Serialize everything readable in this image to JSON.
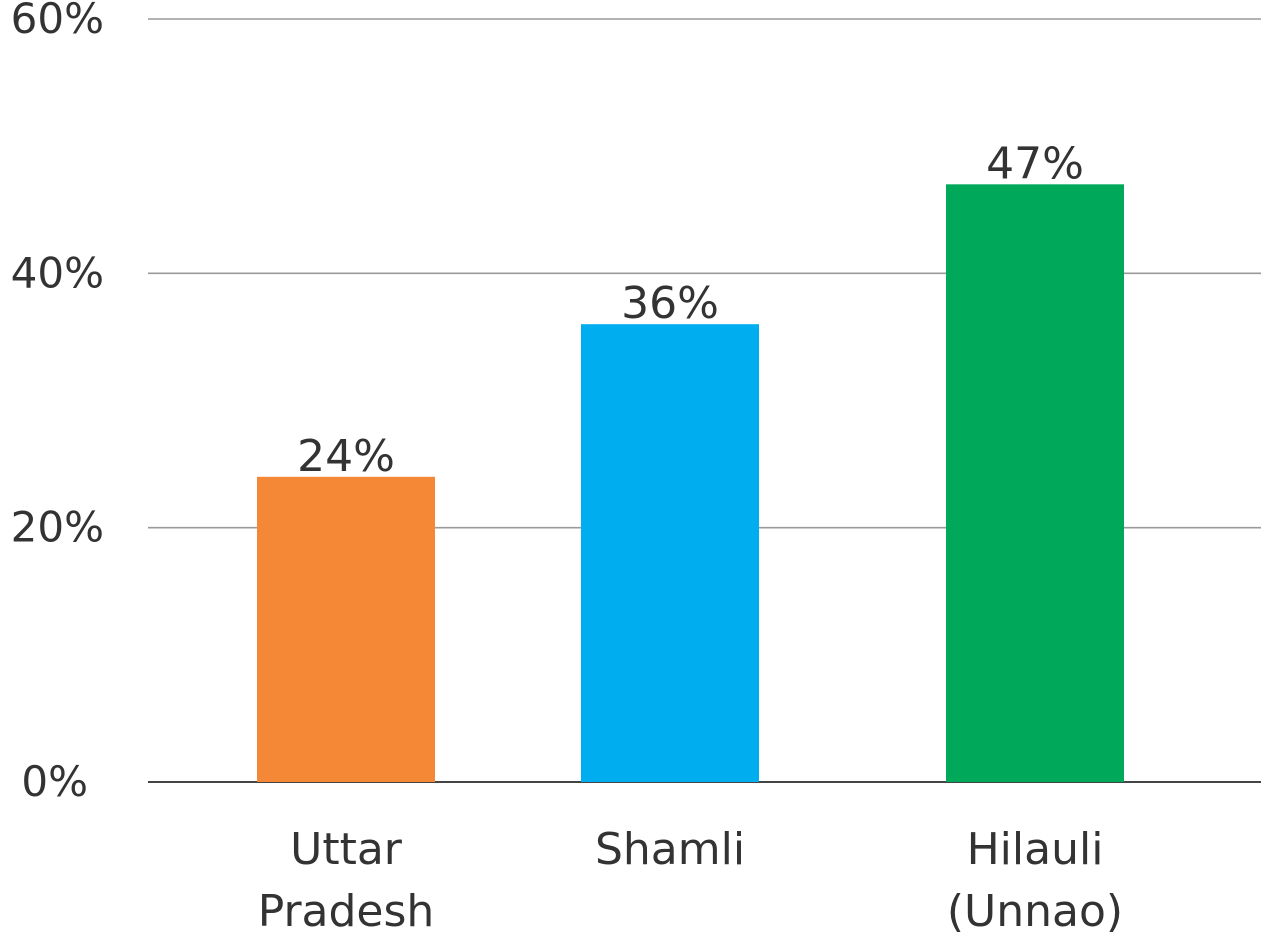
{
  "chart_data": {
    "type": "bar",
    "categories": [
      "Uttar Pradesh",
      "Shamli",
      "Hilauli (Unnao)"
    ],
    "category_lines": [
      [
        "Uttar",
        "Pradesh"
      ],
      [
        "Shamli"
      ],
      [
        "Hilauli",
        "(Unnao)"
      ]
    ],
    "values": [
      24,
      36,
      47
    ],
    "data_labels": [
      "24%",
      "36%",
      "47%"
    ],
    "colors": [
      "#F48836",
      "#00AEEF",
      "#00A859"
    ],
    "title": "",
    "xlabel": "",
    "ylabel": "",
    "ylim": [
      0,
      60
    ],
    "yticks": [
      0,
      20,
      40,
      60
    ],
    "ytick_labels": [
      "0%",
      "20%",
      "40%",
      "60%"
    ],
    "grid": true,
    "legend": "none"
  }
}
